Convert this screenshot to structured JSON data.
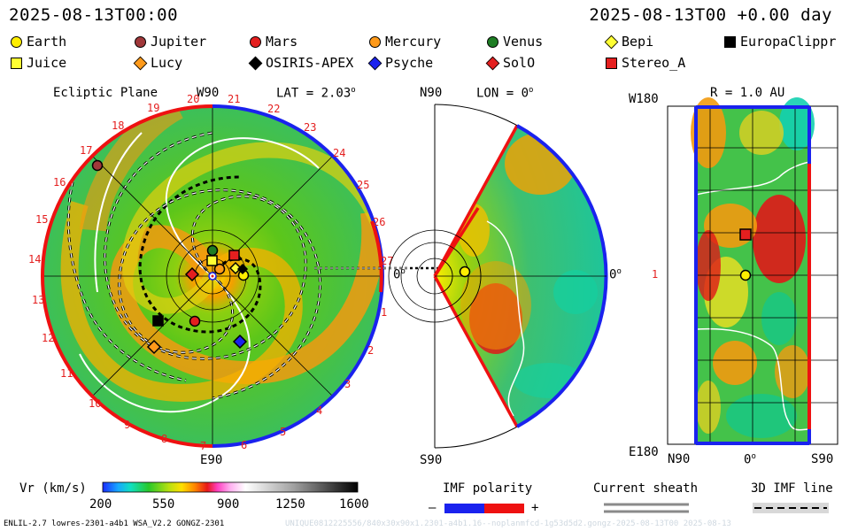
{
  "header": {
    "timestamp_left": "2025-08-13T00:00",
    "timestamp_right": "2025-08-13T00 +0.00 day"
  },
  "legend": [
    {
      "name": "Earth",
      "shape": "circle",
      "color": "#ffee00"
    },
    {
      "name": "Jupiter",
      "shape": "circle",
      "color": "#a0383a"
    },
    {
      "name": "Mars",
      "shape": "circle",
      "color": "#e41f1f"
    },
    {
      "name": "Mercury",
      "shape": "circle",
      "color": "#ff9a1a"
    },
    {
      "name": "Venus",
      "shape": "circle",
      "color": "#1e7d24"
    },
    {
      "name": "Bepi",
      "shape": "diamond",
      "color": "#ffff33"
    },
    {
      "name": "EuropaClippr",
      "shape": "square",
      "color": "#000000"
    },
    {
      "name": "Juice",
      "shape": "square",
      "color": "#ffff33"
    },
    {
      "name": "Lucy",
      "shape": "diamond",
      "color": "#ff9a1a"
    },
    {
      "name": "OSIRIS-APEX",
      "shape": "diamond",
      "color": "#000000"
    },
    {
      "name": "Psyche",
      "shape": "diamond",
      "color": "#1a22ee"
    },
    {
      "name": "SolO",
      "shape": "diamond",
      "color": "#e41f1f"
    },
    {
      "name": "Stereo_A",
      "shape": "square",
      "color": "#e41f1f"
    }
  ],
  "ecliptic_panel": {
    "title": "Ecliptic Plane",
    "top_label": "W90",
    "lat_label": "LAT = 2.03",
    "degree_sign": "o",
    "bottom_label": "E90",
    "right_label": "0",
    "hour_labels": [
      "20",
      "21",
      "22",
      "23",
      "24",
      "25",
      "26",
      "27",
      "1",
      "2",
      "3",
      "4",
      "5",
      "6",
      "7",
      "8",
      "9",
      "10",
      "11",
      "12",
      "13",
      "14",
      "15",
      "16",
      "17",
      "18",
      "19"
    ]
  },
  "meridional_panel": {
    "top_label": "N90",
    "lon_label": "LON = 0",
    "degree_sign": "o",
    "bottom_label": "S90",
    "right_label": "0"
  },
  "sphere_panel": {
    "r_label": "R = 1.0 AU",
    "top_left_label": "W180",
    "mid_left_label": "1",
    "bottom_left_label": "E180",
    "x_labels": [
      "N90",
      "0",
      "S90"
    ],
    "degree_sign": "o"
  },
  "colorbar": {
    "title": "Vr (km/s)",
    "ticks": [
      "200",
      "550",
      "900",
      "1250",
      "1600"
    ],
    "range": [
      200,
      1600
    ]
  },
  "imf_polarity": {
    "title": "IMF polarity",
    "minus": "–",
    "plus": "+",
    "neg_color": "#1a22ee",
    "pos_color": "#ee1111"
  },
  "current_sheath": {
    "title": "Current sheath"
  },
  "imf_line": {
    "title": "3D IMF line"
  },
  "footer": {
    "left": "ENLIL-2.7 lowres-2301-a4b1 WSA_V2.2 GONGZ-2301",
    "right": "UNIQUE0812225556/840x30x90x1.2301-a4b1.16--noplanmfcd-1g53d5d2.gongz-2025-08-13T00  2025-08-13"
  }
}
